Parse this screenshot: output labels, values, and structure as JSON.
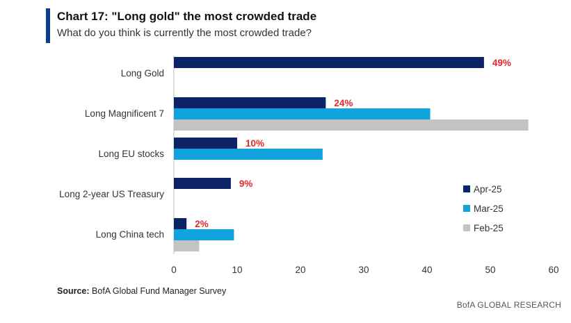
{
  "header": {
    "title": "Chart 17: \"Long gold\" the most crowded trade",
    "subtitle": "What do you think is currently the most crowded trade?"
  },
  "footer": {
    "source_label": "Source:",
    "source_text": "BofA Global Fund Manager Survey",
    "brand": "BofA GLOBAL RESEARCH"
  },
  "colors": {
    "apr": "#0c2366",
    "mar": "#10a3dc",
    "feb": "#c3c3c3",
    "label": "#e8262b"
  },
  "chart_data": {
    "type": "bar",
    "orientation": "horizontal",
    "categories": [
      "Long Gold",
      "Long Magnificent 7",
      "Long EU stocks",
      "Long 2-year US Treasury",
      "Long China tech"
    ],
    "series": [
      {
        "name": "Apr-25",
        "values": [
          49,
          24,
          10,
          9,
          2
        ]
      },
      {
        "name": "Mar-25",
        "values": [
          null,
          40.5,
          23.5,
          null,
          9.5
        ]
      },
      {
        "name": "Feb-25",
        "values": [
          null,
          56,
          null,
          null,
          4
        ]
      }
    ],
    "data_labels": [
      "49%",
      "24%",
      "10%",
      "9%",
      "2%"
    ],
    "xlim": [
      0,
      60
    ],
    "xticks": [
      0,
      10,
      20,
      30,
      40,
      50,
      60
    ],
    "legend_position": "right"
  }
}
